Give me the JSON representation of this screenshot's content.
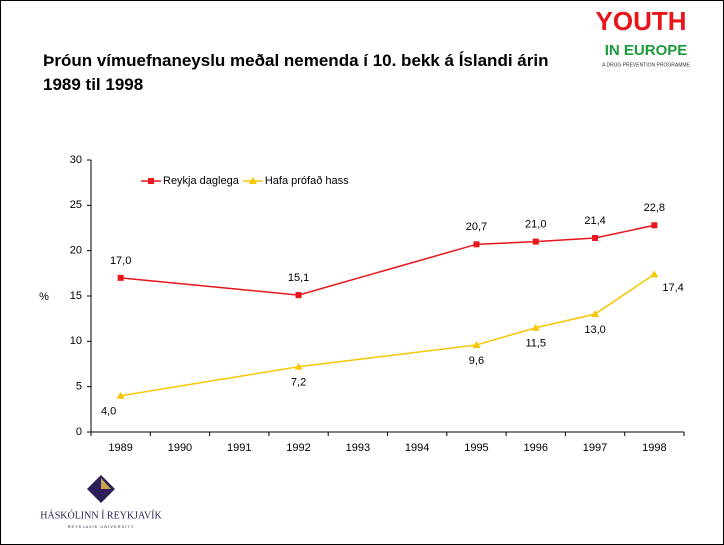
{
  "logo_top": {
    "title": "YOUTH",
    "subtitle": "IN EUROPE",
    "tagline": "A DRUG PREVENTION PROGRAMME"
  },
  "logo_bottom": {
    "title": "HÁSKÓLINN Í REYKJAVÍK",
    "subtitle": "REYKJAVIK UNIVERSITY"
  },
  "chart_data": {
    "type": "line",
    "title": "Þróun vímuefnaneyslu meðal nemenda í 10. bekk á Íslandi árin 1989 til 1998",
    "y_label": "%",
    "xlim": [
      1988.5,
      1998.5
    ],
    "xticks": [
      1989,
      1990,
      1991,
      1992,
      1993,
      1994,
      1995,
      1996,
      1997,
      1998
    ],
    "ylim": [
      0,
      30
    ],
    "yticks": [
      0,
      5,
      10,
      15,
      20,
      25,
      30
    ],
    "legend": "top-left",
    "series": [
      {
        "name": "Reykja daglega",
        "color": "#e8151b",
        "marker": "square",
        "x": [
          1989,
          1992,
          1995,
          1996,
          1997,
          1998
        ],
        "values": [
          17.0,
          15.1,
          20.7,
          21.0,
          21.4,
          22.8
        ],
        "value_labels": [
          "17,0",
          "15,1",
          "20,7",
          "21,0",
          "21,4",
          "22,8"
        ]
      },
      {
        "name": "Hafa prófað hass",
        "color": "#f7c600",
        "marker": "triangle",
        "x": [
          1989,
          1992,
          1995,
          1996,
          1997,
          1998
        ],
        "values": [
          4.0,
          7.2,
          9.6,
          11.5,
          13.0,
          17.4
        ],
        "value_labels": [
          "4,0",
          "7,2",
          "9,6",
          "11,5",
          "13,0",
          "17,4"
        ]
      }
    ]
  }
}
